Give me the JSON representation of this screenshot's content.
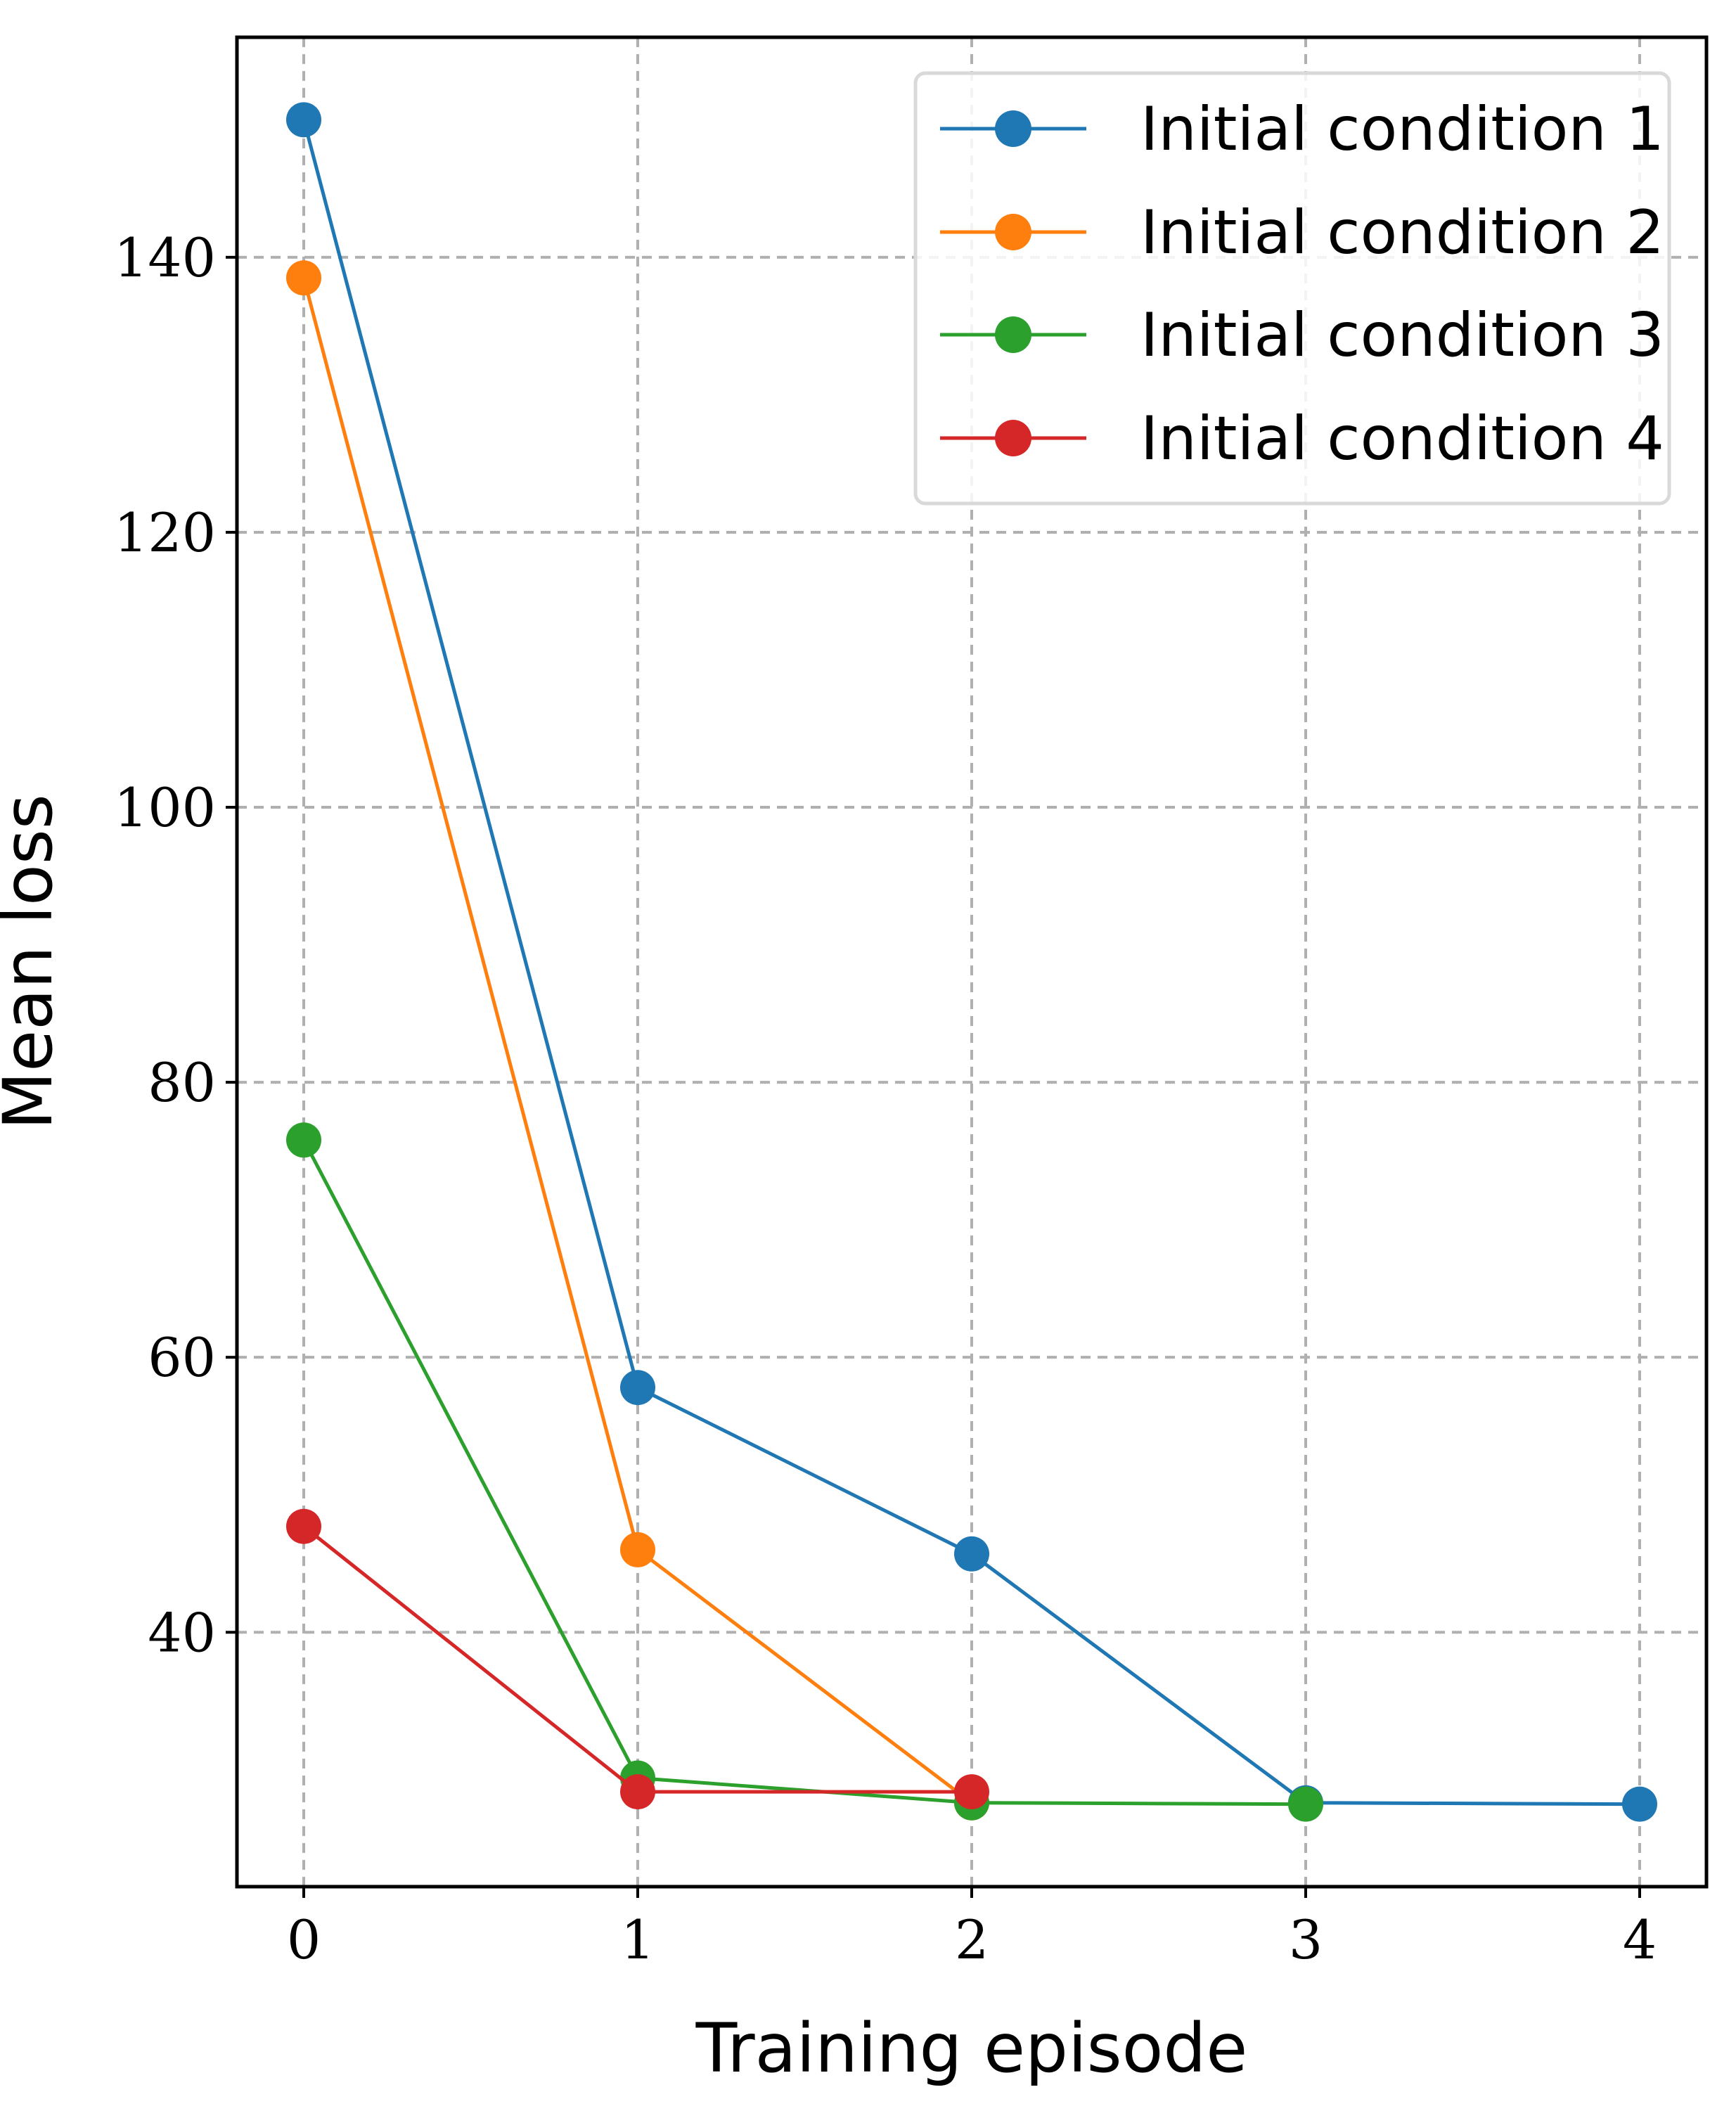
{
  "chart_data": {
    "type": "line",
    "title": "",
    "xlabel": "Training episode",
    "ylabel": "Mean loss",
    "xlim": [
      -0.2,
      4.2
    ],
    "ylim": [
      21.5,
      156
    ],
    "grid": true,
    "legend_position": "top-right",
    "x_ticks": [
      0,
      1,
      2,
      3,
      4
    ],
    "x_tick_labels": [
      "0",
      "1",
      "2",
      "3",
      "4"
    ],
    "y_ticks": [
      40,
      60,
      80,
      100,
      120,
      140
    ],
    "y_tick_labels": [
      "40",
      "60",
      "80",
      "100",
      "120",
      "140"
    ],
    "series": [
      {
        "name": "Initial condition 1",
        "color": "#1f77b4",
        "x": [
          0,
          1,
          2,
          3,
          4
        ],
        "y": [
          150.0,
          57.8,
          45.7,
          27.6,
          27.5
        ]
      },
      {
        "name": "Initial condition 2",
        "color": "#ff7f0e",
        "x": [
          0,
          1,
          2
        ],
        "y": [
          138.5,
          46.0,
          27.6
        ]
      },
      {
        "name": "Initial condition 3",
        "color": "#2ca02c",
        "x": [
          0,
          1,
          2,
          3
        ],
        "y": [
          75.8,
          29.4,
          27.6,
          27.5
        ]
      },
      {
        "name": "Initial condition 4",
        "color": "#d62728",
        "x": [
          0,
          1,
          2
        ],
        "y": [
          47.7,
          28.4,
          28.4
        ]
      }
    ]
  }
}
